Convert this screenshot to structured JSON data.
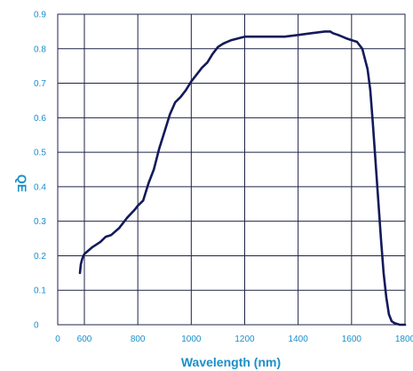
{
  "chart_data": {
    "type": "line",
    "title": "",
    "xlabel": "Wavelength (nm)",
    "ylabel": "QE",
    "xlim": [
      0,
      1800
    ],
    "ylim": [
      0,
      0.9
    ],
    "x_axis_scale": "linear with compressed segment between 0 and 600",
    "x_ticks": [
      0,
      600,
      800,
      1000,
      1200,
      1400,
      1600,
      1800
    ],
    "y_ticks": [
      0,
      0.1,
      0.2,
      0.3,
      0.4,
      0.5,
      0.6,
      0.7,
      0.8,
      0.9
    ],
    "x_tick_labels": [
      "0",
      "600",
      "800",
      "1000",
      "1200",
      "1400",
      "1600",
      "1800"
    ],
    "y_tick_labels": [
      "0",
      "0.1",
      "0.2",
      "0.3",
      "0.4",
      "0.5",
      "0.6",
      "0.7",
      "0.8",
      "0.9"
    ],
    "grid": true,
    "colors": {
      "line": "#141a5a",
      "grid": "#1f2547",
      "axis_text": "#1b8fc9"
    },
    "series": [
      {
        "x": [
          500,
          520,
          550,
          580,
          600,
          630,
          660,
          680,
          700,
          730,
          760,
          790,
          800,
          820,
          840,
          860,
          880,
          900,
          920,
          940,
          960,
          980,
          1000,
          1020,
          1040,
          1060,
          1080,
          1100,
          1120,
          1150,
          1200,
          1250,
          1300,
          1350,
          1400,
          1450,
          1500,
          1520,
          1530,
          1550,
          1580,
          1600,
          1620,
          1640,
          1660,
          1670,
          1680,
          1690,
          1700,
          1710,
          1720,
          1730,
          1740,
          1750,
          1760,
          1780,
          1800
        ],
        "y": [
          0.15,
          0.175,
          0.19,
          0.2,
          0.205,
          0.225,
          0.24,
          0.255,
          0.26,
          0.28,
          0.31,
          0.335,
          0.345,
          0.36,
          0.41,
          0.45,
          0.51,
          0.56,
          0.61,
          0.645,
          0.66,
          0.68,
          0.705,
          0.725,
          0.745,
          0.76,
          0.785,
          0.805,
          0.815,
          0.825,
          0.835,
          0.835,
          0.835,
          0.835,
          0.84,
          0.845,
          0.85,
          0.85,
          0.845,
          0.84,
          0.83,
          0.825,
          0.82,
          0.8,
          0.74,
          0.68,
          0.58,
          0.47,
          0.36,
          0.25,
          0.15,
          0.08,
          0.03,
          0.01,
          0.005,
          0.0,
          0.0
        ]
      }
    ]
  }
}
